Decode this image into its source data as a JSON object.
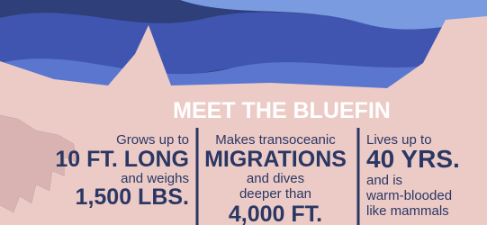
{
  "title": "MEET THE BLUEFIN",
  "columns": [
    {
      "lines": [
        "Grows up to",
        "10 FT. LONG",
        "and weighs",
        "1,500 LBS."
      ]
    },
    {
      "lines": [
        "Makes transoceanic",
        "MIGRATIONS",
        "and dives",
        "deeper than",
        "4,000 FT."
      ]
    },
    {
      "lines": [
        "Lives up to",
        "40 YRS.",
        "and is",
        "warm-blooded",
        "like mammals"
      ]
    }
  ]
}
